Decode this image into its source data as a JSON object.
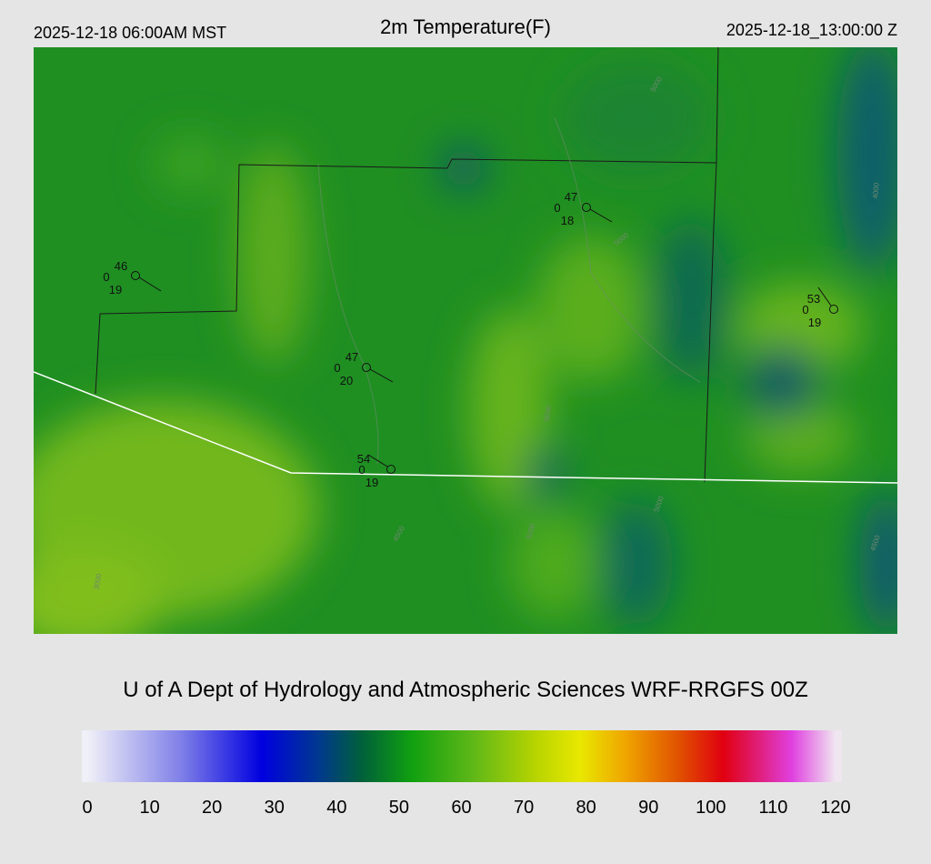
{
  "header": {
    "left": "2025-12-18 06:00AM MST",
    "title": "2m Temperature(F)",
    "right": "2025-12-18_13:00:00 Z"
  },
  "map": {
    "stations": [
      {
        "temperature": "46",
        "pressure": "0",
        "dewpoint": "19"
      },
      {
        "temperature": "47",
        "pressure": "0",
        "dewpoint": "18"
      },
      {
        "temperature": "53",
        "pressure": "0",
        "dewpoint": "19"
      },
      {
        "temperature": "47",
        "pressure": "0",
        "dewpoint": "20"
      },
      {
        "temperature": "54",
        "pressure": "0",
        "dewpoint": "19"
      }
    ],
    "contour_labels": [
      "4500",
      "4500",
      "5000",
      "5000",
      "5000",
      "4000",
      "5000",
      "5000",
      "3000"
    ]
  },
  "footer": "U of A Dept of Hydrology and Atmospheric Sciences WRF-RRGFS 00Z",
  "colorbar": {
    "range": [
      0,
      120
    ],
    "ticks": [
      0,
      10,
      20,
      30,
      40,
      50,
      60,
      70,
      80,
      90,
      100,
      110,
      120
    ],
    "stops": [
      {
        "value": 0,
        "color": "#f0f0f8"
      },
      {
        "value": 15,
        "color": "#8080e8"
      },
      {
        "value": 28,
        "color": "#0000e0"
      },
      {
        "value": 37,
        "color": "#003890"
      },
      {
        "value": 44,
        "color": "#00603a"
      },
      {
        "value": 52,
        "color": "#10a010"
      },
      {
        "value": 62,
        "color": "#60b818"
      },
      {
        "value": 72,
        "color": "#b8d400"
      },
      {
        "value": 79,
        "color": "#e8e800"
      },
      {
        "value": 86,
        "color": "#f0a800"
      },
      {
        "value": 95,
        "color": "#e05000"
      },
      {
        "value": 102,
        "color": "#e00010"
      },
      {
        "value": 108,
        "color": "#e02080"
      },
      {
        "value": 113,
        "color": "#e040e0"
      },
      {
        "value": 120,
        "color": "#f0e6f0"
      }
    ]
  }
}
